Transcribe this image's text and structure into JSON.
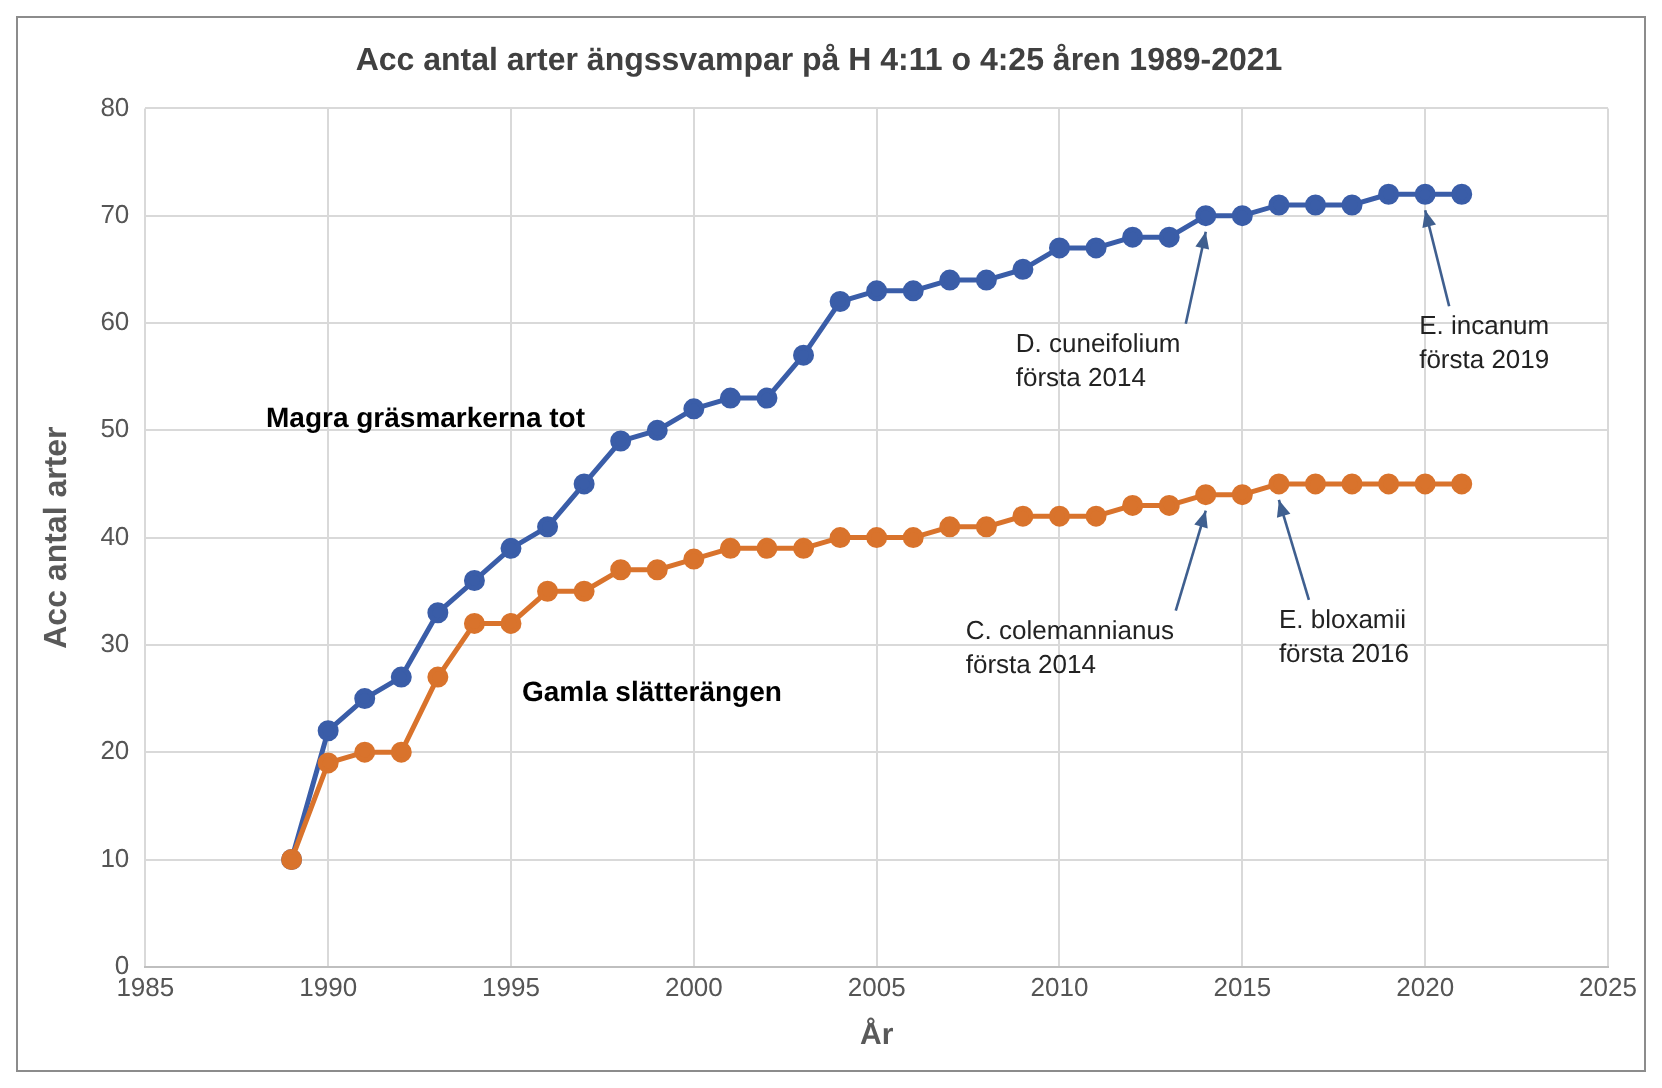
{
  "chart_data": {
    "type": "line",
    "title": "Acc antal arter ängssvampar på H 4:11 o 4:25 åren 1989-2021",
    "xlabel": "År",
    "ylabel": "Acc antal arter",
    "x": [
      1989,
      1990,
      1991,
      1992,
      1993,
      1994,
      1995,
      1996,
      1997,
      1998,
      1999,
      2000,
      2001,
      2002,
      2003,
      2004,
      2005,
      2006,
      2007,
      2008,
      2009,
      2010,
      2011,
      2012,
      2013,
      2014,
      2015,
      2016,
      2017,
      2018,
      2019,
      2020,
      2021
    ],
    "series": [
      {
        "name": "Magra gräsmarkerna tot",
        "color": "#3a5da8",
        "values": [
          10,
          22,
          25,
          27,
          33,
          36,
          39,
          41,
          45,
          49,
          50,
          52,
          53,
          53,
          57,
          62,
          63,
          63,
          64,
          64,
          65,
          67,
          67,
          68,
          68,
          70,
          70,
          71,
          71,
          71,
          72,
          72,
          72
        ]
      },
      {
        "name": "Gamla slätterängen",
        "color": "#d9732c",
        "values": [
          10,
          19,
          20,
          20,
          27,
          32,
          32,
          35,
          35,
          37,
          37,
          38,
          39,
          39,
          39,
          40,
          40,
          40,
          41,
          41,
          42,
          42,
          42,
          43,
          43,
          44,
          44,
          45,
          45,
          45,
          45,
          45,
          45
        ]
      }
    ],
    "annotations": [
      {
        "text": "D. cuneifolium\nförsta 2014",
        "x": 2014,
        "y": 70
      },
      {
        "text": "E. incanum\nförsta 2019",
        "x": 2020,
        "y": 72
      },
      {
        "text": "C. colemannianus\nförsta 2014",
        "x": 2014,
        "y": 44
      },
      {
        "text": "E. bloxamii\nförsta 2016",
        "x": 2016,
        "y": 45
      }
    ],
    "xlim": [
      1985,
      2025
    ],
    "xticks": [
      1985,
      1990,
      1995,
      2000,
      2005,
      2010,
      2015,
      2020,
      2025
    ],
    "ylim": [
      0,
      80
    ],
    "yticks": [
      0,
      10,
      20,
      30,
      40,
      50,
      60,
      70,
      80
    ],
    "grid": true,
    "legend": false,
    "marker": "circle",
    "line_style": "solid"
  }
}
